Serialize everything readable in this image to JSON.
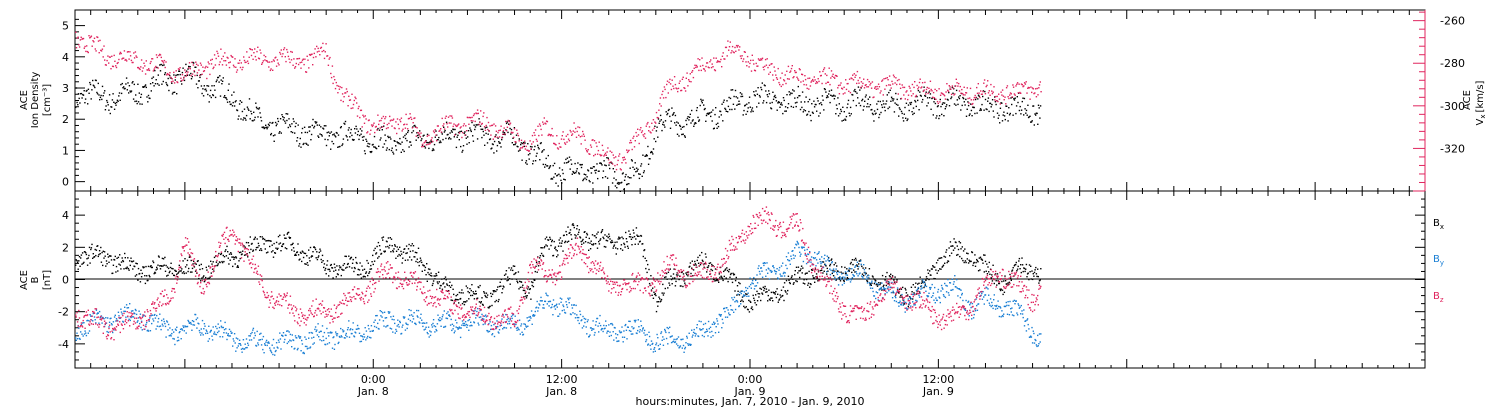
{
  "colors": {
    "black": "#000000",
    "red": "#e0245e",
    "blue": "#1a7fd4"
  },
  "chart_data": [
    {
      "type": "scatter",
      "panel": "ion-density-and-velocity",
      "ylabel_left": [
        "ACE",
        "Ion Density",
        "[cm⁻³]"
      ],
      "ylabel_right": [
        "ACE",
        "V",
        "x",
        "[km/s]"
      ],
      "ylim_left": [
        -0.3,
        5.5
      ],
      "ylim_right": [
        -340,
        -255
      ],
      "yticks_left": [
        0,
        1,
        2,
        3,
        4,
        5
      ],
      "yticks_right": [
        -320,
        -300,
        -280,
        -260
      ],
      "xlim_hours": [
        -19,
        67
      ],
      "series": [
        {
          "axis": "left",
          "color": "#000000",
          "points": [
            [
              -19,
              2.9
            ],
            [
              -17,
              2.7
            ],
            [
              -15,
              2.9
            ],
            [
              -13.5,
              3.3
            ],
            [
              -12,
              3.4
            ],
            [
              -10.5,
              3.1
            ],
            [
              -9,
              2.7
            ],
            [
              -7,
              1.8
            ],
            [
              -5,
              1.7
            ],
            [
              -3,
              1.5
            ],
            [
              -1,
              1.5
            ],
            [
              1,
              1.2
            ],
            [
              3,
              1.4
            ],
            [
              5,
              1.5
            ],
            [
              7,
              1.5
            ],
            [
              9,
              1.4
            ],
            [
              10.5,
              0.8
            ],
            [
              11,
              0.5
            ],
            [
              12,
              0.4
            ],
            [
              13,
              0.4
            ],
            [
              14,
              0.3
            ],
            [
              15,
              0.3
            ],
            [
              16,
              0.25
            ],
            [
              17,
              0.3
            ],
            [
              18,
              1.8
            ],
            [
              20,
              2.0
            ],
            [
              22,
              2.3
            ],
            [
              24,
              2.7
            ],
            [
              26,
              2.6
            ],
            [
              28,
              2.5
            ],
            [
              30,
              2.5
            ],
            [
              32,
              2.5
            ],
            [
              34,
              2.4
            ],
            [
              36,
              2.6
            ],
            [
              38,
              2.5
            ],
            [
              40,
              2.4
            ],
            [
              42.5,
              2.3
            ]
          ]
        },
        {
          "axis": "right",
          "color": "#e0245e",
          "points": [
            [
              -19,
              -267
            ],
            [
              -18,
              -272
            ],
            [
              -17,
              -276
            ],
            [
              -15,
              -278
            ],
            [
              -13.5,
              -282
            ],
            [
              -12,
              -285
            ],
            [
              -10,
              -279
            ],
            [
              -8,
              -278
            ],
            [
              -6,
              -278
            ],
            [
              -4,
              -279
            ],
            [
              -3,
              -274
            ],
            [
              -2,
              -296
            ],
            [
              -1,
              -302
            ],
            [
              0,
              -310
            ],
            [
              2,
              -306
            ],
            [
              3,
              -315
            ],
            [
              5,
              -309
            ],
            [
              7,
              -307
            ],
            [
              9,
              -314
            ],
            [
              10,
              -318
            ],
            [
              11,
              -310
            ],
            [
              12,
              -315
            ],
            [
              13,
              -313
            ],
            [
              14,
              -318
            ],
            [
              15,
              -325
            ],
            [
              16,
              -323
            ],
            [
              17,
              -315
            ],
            [
              18,
              -303
            ],
            [
              19,
              -290
            ],
            [
              20,
              -286
            ],
            [
              21,
              -281
            ],
            [
              22,
              -277
            ],
            [
              23,
              -273
            ],
            [
              24,
              -278
            ],
            [
              25,
              -282
            ],
            [
              27,
              -287
            ],
            [
              29,
              -288
            ],
            [
              31,
              -290
            ],
            [
              33,
              -291
            ],
            [
              35,
              -292
            ],
            [
              37,
              -293
            ],
            [
              39,
              -293
            ],
            [
              41,
              -293
            ],
            [
              42.5,
              -290
            ]
          ]
        }
      ]
    },
    {
      "type": "scatter",
      "panel": "magnetic-field-components",
      "ylabel": [
        "ACE",
        "B",
        "[nT]"
      ],
      "ylim": [
        -5.5,
        5.5
      ],
      "yticks": [
        -4,
        -2,
        0,
        2,
        4
      ],
      "xlim_hours": [
        -19,
        67
      ],
      "series": [
        {
          "name": "B",
          "subscript": "x",
          "color": "#000000",
          "points": [
            [
              -19,
              1.5
            ],
            [
              -17,
              1.4
            ],
            [
              -15,
              0.6
            ],
            [
              -13,
              0.8
            ],
            [
              -11,
              0.6
            ],
            [
              -9,
              1.5
            ],
            [
              -7,
              2.3
            ],
            [
              -5,
              2.1
            ],
            [
              -3,
              0.9
            ],
            [
              -1,
              0.7
            ],
            [
              1,
              2.2
            ],
            [
              3,
              1.2
            ],
            [
              5,
              -1.0
            ],
            [
              6,
              -0.6
            ],
            [
              7,
              -1.3
            ],
            [
              9,
              0.2
            ],
            [
              10,
              -0.5
            ],
            [
              11,
              2.2
            ],
            [
              12,
              2.4
            ],
            [
              13,
              2.9
            ],
            [
              14,
              2.5
            ],
            [
              15,
              2.2
            ],
            [
              16,
              2.6
            ],
            [
              17,
              2.3
            ],
            [
              18,
              -1.2
            ],
            [
              19,
              0.0
            ],
            [
              20,
              0.6
            ],
            [
              21,
              1.0
            ],
            [
              22,
              0.6
            ],
            [
              23,
              -0.5
            ],
            [
              24,
              -1.2
            ],
            [
              25,
              -1.0
            ],
            [
              26,
              -0.6
            ],
            [
              27,
              0.1
            ],
            [
              28,
              0.5
            ],
            [
              29,
              0.6
            ],
            [
              30,
              0.6
            ],
            [
              31,
              0.7
            ],
            [
              32,
              0.2
            ],
            [
              33,
              -0.5
            ],
            [
              34,
              -0.8
            ],
            [
              35,
              -0.6
            ],
            [
              36,
              1.2
            ],
            [
              37,
              1.8
            ],
            [
              38,
              1.7
            ],
            [
              39,
              0.6
            ],
            [
              40,
              -0.1
            ],
            [
              41,
              0.8
            ],
            [
              42.5,
              0.5
            ]
          ]
        },
        {
          "name": "B",
          "subscript": "y",
          "color": "#1a7fd4",
          "points": [
            [
              -19,
              -3.0
            ],
            [
              -17,
              -2.5
            ],
            [
              -15,
              -2.2
            ],
            [
              -13,
              -3.2
            ],
            [
              -11,
              -2.8
            ],
            [
              -9,
              -3.6
            ],
            [
              -7,
              -4.0
            ],
            [
              -5,
              -3.8
            ],
            [
              -3,
              -3.5
            ],
            [
              -1,
              -3.3
            ],
            [
              1,
              -2.5
            ],
            [
              3,
              -2.6
            ],
            [
              5,
              -2.8
            ],
            [
              7,
              -2.5
            ],
            [
              9,
              -2.9
            ],
            [
              11,
              -1.5
            ],
            [
              12,
              -1.4
            ],
            [
              13,
              -2.5
            ],
            [
              14,
              -2.7
            ],
            [
              15,
              -3.2
            ],
            [
              16,
              -3.0
            ],
            [
              17,
              -3.3
            ],
            [
              18,
              -3.7
            ],
            [
              19,
              -3.8
            ],
            [
              20,
              -3.6
            ],
            [
              21,
              -3.3
            ],
            [
              22,
              -2.4
            ],
            [
              23,
              -1.8
            ],
            [
              24,
              0.0
            ],
            [
              25,
              0.3
            ],
            [
              26,
              0.8
            ],
            [
              27,
              1.6
            ],
            [
              28,
              1.7
            ],
            [
              29,
              0.5
            ],
            [
              30,
              0.3
            ],
            [
              31,
              0.4
            ],
            [
              32,
              -0.4
            ],
            [
              33,
              -1.0
            ],
            [
              34,
              -1.2
            ],
            [
              35,
              -0.8
            ],
            [
              36,
              -0.6
            ],
            [
              37,
              -0.5
            ],
            [
              38,
              -1.6
            ],
            [
              39,
              -1.2
            ],
            [
              40,
              -1.5
            ],
            [
              41,
              -2.0
            ],
            [
              42,
              -3.2
            ],
            [
              42.5,
              -3.5
            ]
          ]
        },
        {
          "name": "B",
          "subscript": "z",
          "color": "#e0245e",
          "points": [
            [
              -19,
              -2.0
            ],
            [
              -17,
              -3.0
            ],
            [
              -15,
              -2.5
            ],
            [
              -13,
              -1.0
            ],
            [
              -12,
              2.2
            ],
            [
              -11,
              -0.4
            ],
            [
              -9,
              3.2
            ],
            [
              -7,
              -0.6
            ],
            [
              -5,
              -2.0
            ],
            [
              -3,
              -2.0
            ],
            [
              -1,
              -1.0
            ],
            [
              1,
              0.6
            ],
            [
              3,
              -0.5
            ],
            [
              5,
              -1.6
            ],
            [
              7,
              -2.2
            ],
            [
              9,
              -2.5
            ],
            [
              10,
              0.9
            ],
            [
              11,
              0.3
            ],
            [
              12,
              0.8
            ],
            [
              13,
              2.0
            ],
            [
              14,
              1.0
            ],
            [
              15,
              -0.4
            ],
            [
              16,
              -0.2
            ],
            [
              17,
              -0.4
            ],
            [
              18,
              0.0
            ],
            [
              19,
              1.0
            ],
            [
              20,
              0.3
            ],
            [
              21,
              0.4
            ],
            [
              22,
              0.8
            ],
            [
              23,
              2.1
            ],
            [
              24,
              3.6
            ],
            [
              25,
              3.8
            ],
            [
              26,
              3.3
            ],
            [
              27,
              3.4
            ],
            [
              28,
              1.0
            ],
            [
              29,
              -0.5
            ],
            [
              30,
              -1.8
            ],
            [
              31,
              -2.5
            ],
            [
              32,
              -1.1
            ],
            [
              33,
              -0.5
            ],
            [
              34,
              -1.0
            ],
            [
              35,
              -1.6
            ],
            [
              36,
              -2.3
            ],
            [
              37,
              -2.3
            ],
            [
              38,
              -1.5
            ],
            [
              39,
              -0.3
            ],
            [
              40,
              0.5
            ],
            [
              41,
              -0.4
            ],
            [
              42,
              -1.2
            ],
            [
              42.5,
              -0.5
            ]
          ]
        }
      ]
    }
  ],
  "x_axis": {
    "ticks": [
      {
        "hour": 0,
        "time": "0:00",
        "date": "Jan. 8"
      },
      {
        "hour": 12,
        "time": "12:00",
        "date": "Jan. 8"
      },
      {
        "hour": 24,
        "time": "0:00",
        "date": "Jan. 9"
      },
      {
        "hour": 36,
        "time": "12:00",
        "date": "Jan. 9"
      }
    ],
    "title": "hours:minutes, Jan.  7, 2010 - Jan.  9, 2010"
  }
}
